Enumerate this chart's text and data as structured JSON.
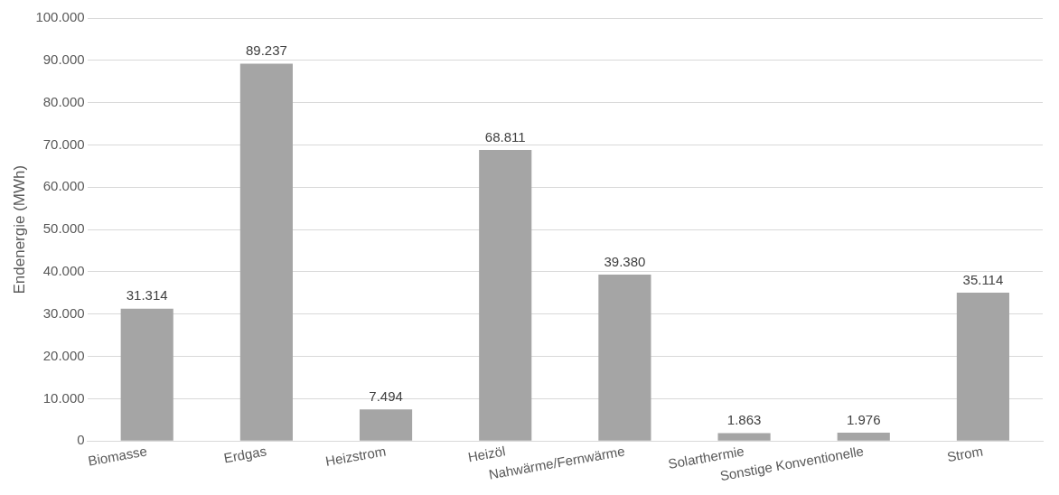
{
  "chart_data": {
    "type": "bar",
    "ylabel": "Endenergie (MWh)",
    "categories": [
      "Biomasse",
      "Erdgas",
      "Heizstrom",
      "Heizöl",
      "Nahwärme/Fernwärme",
      "Solarthermie",
      "Sonstige Konventionelle",
      "Strom"
    ],
    "values": [
      31314,
      89237,
      7494,
      68811,
      39380,
      1863,
      1976,
      35114
    ],
    "value_labels": [
      "31.314",
      "89.237",
      "7.494",
      "68.811",
      "39.380",
      "1.863",
      "1.976",
      "35.114"
    ],
    "color": "#a5a5a5",
    "ylim": [
      0,
      100000
    ],
    "yticks": [
      {
        "value": 0,
        "label": "0"
      },
      {
        "value": 10000,
        "label": "10.000"
      },
      {
        "value": 20000,
        "label": "20.000"
      },
      {
        "value": 30000,
        "label": "30.000"
      },
      {
        "value": 40000,
        "label": "40.000"
      },
      {
        "value": 50000,
        "label": "50.000"
      },
      {
        "value": 60000,
        "label": "60.000"
      },
      {
        "value": 70000,
        "label": "70.000"
      },
      {
        "value": 80000,
        "label": "80.000"
      },
      {
        "value": 90000,
        "label": "90.000"
      },
      {
        "value": 100000,
        "label": "100.000"
      }
    ],
    "grid": "y",
    "legend": false
  }
}
